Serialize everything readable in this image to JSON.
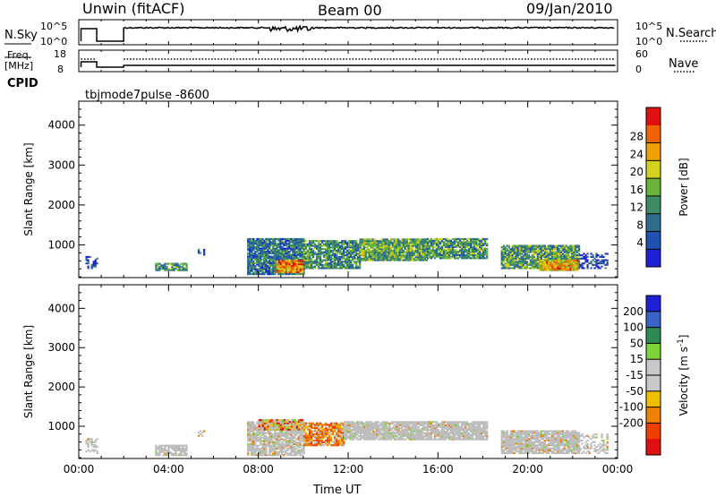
{
  "header": {
    "station": "Unwin (fitACF)",
    "beam": "Beam 00",
    "date": "09/Jan/2010"
  },
  "top_panels": {
    "nsky_label": "N.Sky",
    "nsky_ticks": [
      "10^5",
      "10^0"
    ],
    "nsearch_label": "N.Search",
    "freq_label": "Freq.",
    "freq_unit": "[MHz]",
    "freq_ticks": [
      "18",
      "8"
    ],
    "nave_ticks": [
      "60",
      "0"
    ],
    "nave_label": "Nave",
    "cpid_label": "CPID",
    "cpid_value": "tbjmode7pulse  -8600"
  },
  "colors": {
    "power_scale": [
      "#1f1fd6",
      "#1f50b4",
      "#2d6e8e",
      "#3c8c64",
      "#6ab43a",
      "#d2d21e",
      "#f0a000",
      "#f06400",
      "#e01010"
    ],
    "velocity_scale": [
      "#1f1fd6",
      "#3a64c8",
      "#2e8b57",
      "#7cd43a",
      "#c8c8c8",
      "#c8c8c8",
      "#f0c000",
      "#f08000",
      "#f04000",
      "#e01010"
    ],
    "scatter_gray": "#bdbdbd"
  },
  "chart_data": [
    {
      "type": "heatmap",
      "name": "power",
      "ylabel": "Slant Range [km]",
      "xlabel": "Time UT",
      "x_ticks": [
        "00:00",
        "04:00",
        "08:00",
        "12:00",
        "16:00",
        "20:00",
        "00:00"
      ],
      "y_ticks": [
        "1000",
        "2000",
        "3000",
        "4000"
      ],
      "xlim": [
        0,
        24
      ],
      "ylim": [
        180,
        4600
      ],
      "colorbar_label": "Power [dB]",
      "colorbar_ticks": [
        "4",
        "8",
        "12",
        "16",
        "20",
        "24",
        "28"
      ],
      "colorbar_range": [
        0,
        30
      ],
      "blobs": [
        {
          "t0": 0.3,
          "t1": 0.8,
          "r0": 400,
          "r1": 700,
          "level": 0.15,
          "density": 0.4
        },
        {
          "t0": 3.4,
          "t1": 4.8,
          "r0": 350,
          "r1": 550,
          "level": 0.35,
          "density": 0.8
        },
        {
          "t0": 5.3,
          "t1": 5.6,
          "r0": 700,
          "r1": 900,
          "level": 0.2,
          "density": 0.5
        },
        {
          "t0": 7.5,
          "t1": 10.0,
          "r0": 250,
          "r1": 1150,
          "level": 0.3,
          "density": 0.9
        },
        {
          "t0": 8.8,
          "t1": 10.0,
          "r0": 300,
          "r1": 600,
          "level": 0.75,
          "density": 1.0
        },
        {
          "t0": 10.0,
          "t1": 12.5,
          "r0": 400,
          "r1": 1100,
          "level": 0.35,
          "density": 0.85
        },
        {
          "t0": 12.5,
          "t1": 15.5,
          "r0": 600,
          "r1": 1150,
          "level": 0.45,
          "density": 0.95
        },
        {
          "t0": 15.5,
          "t1": 18.2,
          "r0": 650,
          "r1": 1150,
          "level": 0.4,
          "density": 0.9
        },
        {
          "t0": 18.8,
          "t1": 22.3,
          "r0": 400,
          "r1": 1000,
          "level": 0.4,
          "density": 0.9
        },
        {
          "t0": 20.5,
          "t1": 22.2,
          "r0": 350,
          "r1": 600,
          "level": 0.7,
          "density": 1.0
        },
        {
          "t0": 22.3,
          "t1": 23.5,
          "r0": 400,
          "r1": 800,
          "level": 0.15,
          "density": 0.45
        }
      ]
    },
    {
      "type": "heatmap",
      "name": "velocity",
      "ylabel": "Slant Range [km]",
      "xlabel": "Time UT",
      "x_ticks": [
        "00:00",
        "04:00",
        "08:00",
        "12:00",
        "16:00",
        "20:00",
        "00:00"
      ],
      "y_ticks": [
        "1000",
        "2000",
        "3000",
        "4000"
      ],
      "xlim": [
        0,
        24
      ],
      "ylim": [
        180,
        4600
      ],
      "colorbar_label": "Velocity [m s^-1]",
      "colorbar_ticks": [
        "200",
        "100",
        "50",
        "15",
        "-15",
        "-50",
        "-100",
        "-200"
      ],
      "blobs": [
        {
          "t0": 0.3,
          "t1": 0.8,
          "r0": 300,
          "r1": 700,
          "kind": "gray",
          "density": 0.4
        },
        {
          "t0": 3.4,
          "t1": 4.8,
          "r0": 250,
          "r1": 500,
          "kind": "gray",
          "density": 0.8
        },
        {
          "t0": 5.3,
          "t1": 5.6,
          "r0": 700,
          "r1": 900,
          "kind": "gray",
          "density": 0.5
        },
        {
          "t0": 7.5,
          "t1": 10.0,
          "r0": 250,
          "r1": 1100,
          "kind": "gray",
          "density": 0.85
        },
        {
          "t0": 8.0,
          "t1": 10.0,
          "r0": 900,
          "r1": 1150,
          "kind": "mix",
          "density": 0.9
        },
        {
          "t0": 10.0,
          "t1": 11.8,
          "r0": 500,
          "r1": 1100,
          "kind": "orange",
          "density": 0.8
        },
        {
          "t0": 11.8,
          "t1": 15.5,
          "r0": 650,
          "r1": 1100,
          "kind": "gray",
          "density": 0.9
        },
        {
          "t0": 15.5,
          "t1": 18.2,
          "r0": 650,
          "r1": 1100,
          "kind": "gray",
          "density": 0.9
        },
        {
          "t0": 18.8,
          "t1": 22.3,
          "r0": 300,
          "r1": 900,
          "kind": "gray",
          "density": 0.9
        },
        {
          "t0": 22.3,
          "t1": 23.5,
          "r0": 300,
          "r1": 800,
          "kind": "gray",
          "density": 0.4
        }
      ]
    }
  ]
}
